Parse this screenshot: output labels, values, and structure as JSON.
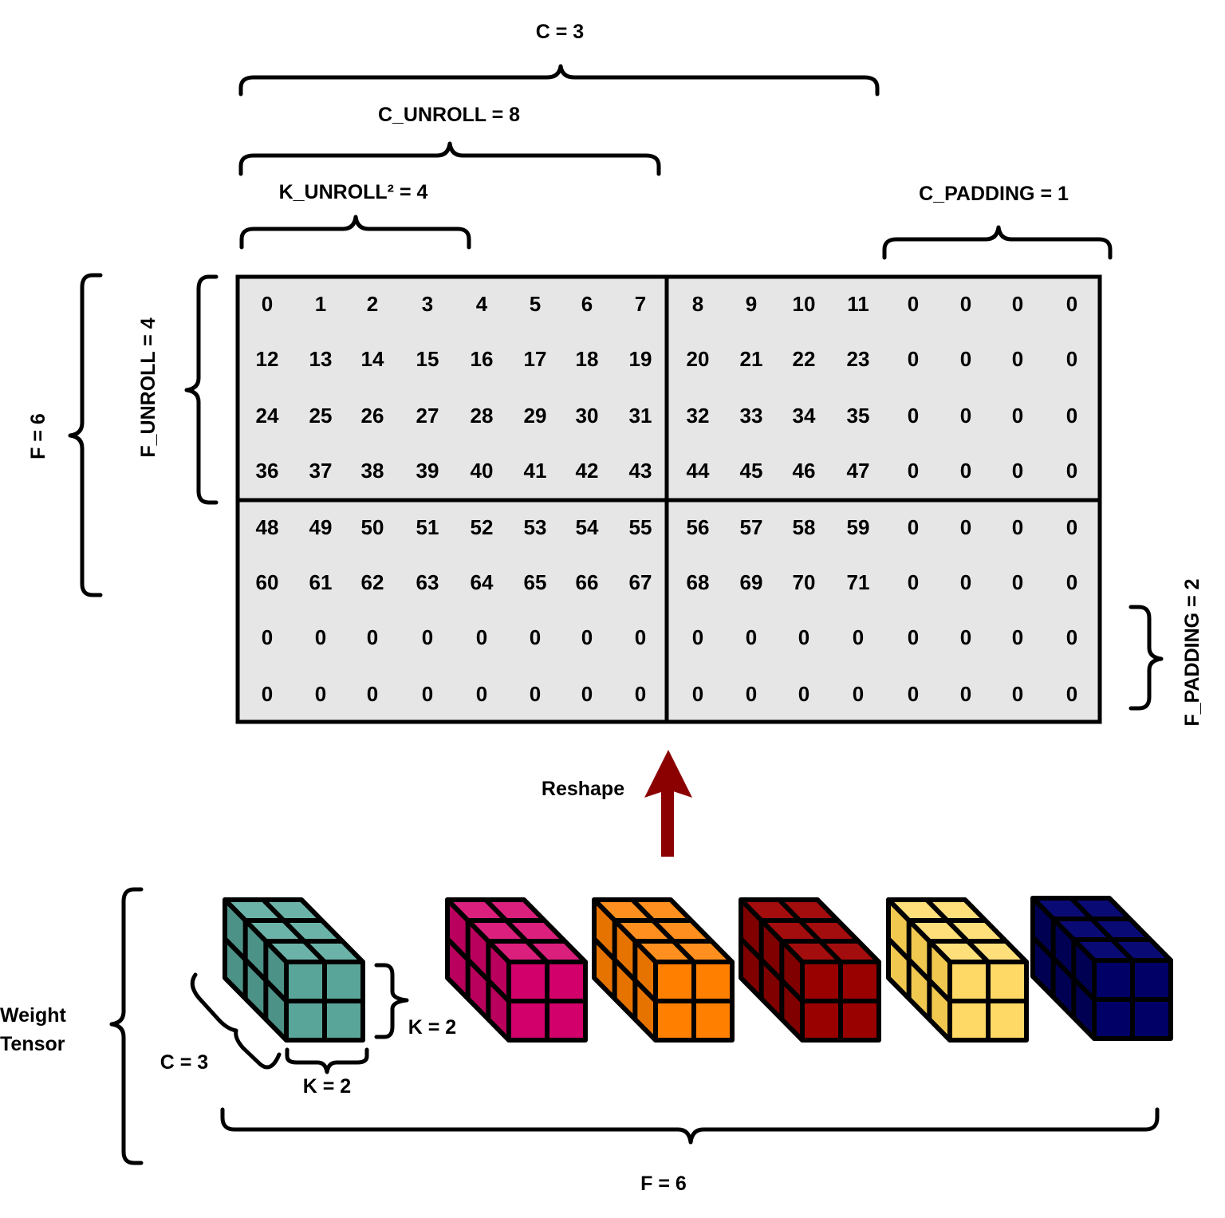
{
  "labels": {
    "c_top": "C = 3",
    "c_unroll": "C_UNROLL = 8",
    "k_unroll": "K_UNROLL² = 4",
    "c_padding": "C_PADDING = 1",
    "f_left": "F = 6",
    "f_unroll": "F_UNROLL = 4",
    "f_padding": "F_PADDING = 2",
    "reshape": "Reshape",
    "weight_line1": "Weight",
    "weight_line2": "Tensor",
    "k_side": "K = 2",
    "c_depth": "C = 3",
    "k_bottom": "K = 2",
    "f_bottom": "F = 6"
  },
  "matrix": [
    [
      "0",
      "1",
      "2",
      "3",
      "4",
      "5",
      "6",
      "7",
      "8",
      "9",
      "10",
      "11",
      "0",
      "0",
      "0",
      "0"
    ],
    [
      "12",
      "13",
      "14",
      "15",
      "16",
      "17",
      "18",
      "19",
      "20",
      "21",
      "22",
      "23",
      "0",
      "0",
      "0",
      "0"
    ],
    [
      "24",
      "25",
      "26",
      "27",
      "28",
      "29",
      "30",
      "31",
      "32",
      "33",
      "34",
      "35",
      "0",
      "0",
      "0",
      "0"
    ],
    [
      "36",
      "37",
      "38",
      "39",
      "40",
      "41",
      "42",
      "43",
      "44",
      "45",
      "46",
      "47",
      "0",
      "0",
      "0",
      "0"
    ],
    [
      "48",
      "49",
      "50",
      "51",
      "52",
      "53",
      "54",
      "55",
      "56",
      "57",
      "58",
      "59",
      "0",
      "0",
      "0",
      "0"
    ],
    [
      "60",
      "61",
      "62",
      "63",
      "64",
      "65",
      "66",
      "67",
      "68",
      "69",
      "70",
      "71",
      "0",
      "0",
      "0",
      "0"
    ],
    [
      "0",
      "0",
      "0",
      "0",
      "0",
      "0",
      "0",
      "0",
      "0",
      "0",
      "0",
      "0",
      "0",
      "0",
      "0",
      "0"
    ],
    [
      "0",
      "0",
      "0",
      "0",
      "0",
      "0",
      "0",
      "0",
      "0",
      "0",
      "0",
      "0",
      "0",
      "0",
      "0",
      "0"
    ]
  ],
  "colors": {
    "matrix_fill": "#e6e6e6",
    "arrow": "#8b0000",
    "cubes": [
      {
        "name": "teal",
        "front": "#5aa59a",
        "side": "#4d9287",
        "top": "#6bb3a8"
      },
      {
        "name": "magenta",
        "front": "#d1006b",
        "side": "#b8005c",
        "top": "#db1f7c"
      },
      {
        "name": "orange",
        "front": "#ff8000",
        "side": "#e67300",
        "top": "#ff8f1f"
      },
      {
        "name": "dark-red",
        "front": "#990000",
        "side": "#800000",
        "top": "#a30d0d"
      },
      {
        "name": "yellow",
        "front": "#ffd966",
        "side": "#f0c850",
        "top": "#ffdf7a"
      },
      {
        "name": "navy",
        "front": "#000066",
        "side": "#000052",
        "top": "#0a0a75"
      }
    ]
  }
}
